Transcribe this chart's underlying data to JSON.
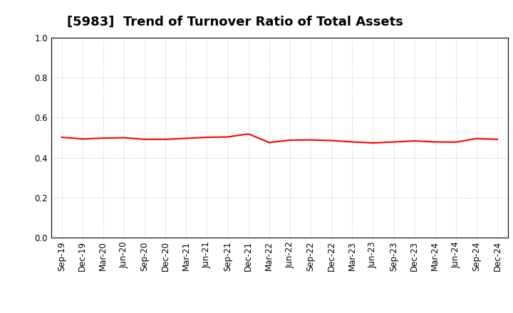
{
  "title": "[5983]  Trend of Turnover Ratio of Total Assets",
  "labels": [
    "Sep-19",
    "Dec-19",
    "Mar-20",
    "Jun-20",
    "Sep-20",
    "Dec-20",
    "Mar-21",
    "Jun-21",
    "Sep-21",
    "Dec-21",
    "Mar-22",
    "Jun-22",
    "Sep-22",
    "Dec-22",
    "Mar-23",
    "Jun-23",
    "Sep-23",
    "Dec-23",
    "Mar-24",
    "Jun-24",
    "Sep-24",
    "Dec-24"
  ],
  "values": [
    0.502,
    0.494,
    0.498,
    0.5,
    0.492,
    0.492,
    0.497,
    0.502,
    0.504,
    0.519,
    0.476,
    0.488,
    0.489,
    0.486,
    0.479,
    0.474,
    0.479,
    0.484,
    0.479,
    0.478,
    0.496,
    0.492
  ],
  "line_color": "#FF0000",
  "line_width": 1.5,
  "ylim": [
    0.0,
    1.0
  ],
  "yticks": [
    0.0,
    0.2,
    0.4,
    0.6,
    0.8,
    1.0
  ],
  "background_color": "#ffffff",
  "grid_color": "#bbbbbb",
  "title_fontsize": 13,
  "tick_fontsize": 8.5
}
